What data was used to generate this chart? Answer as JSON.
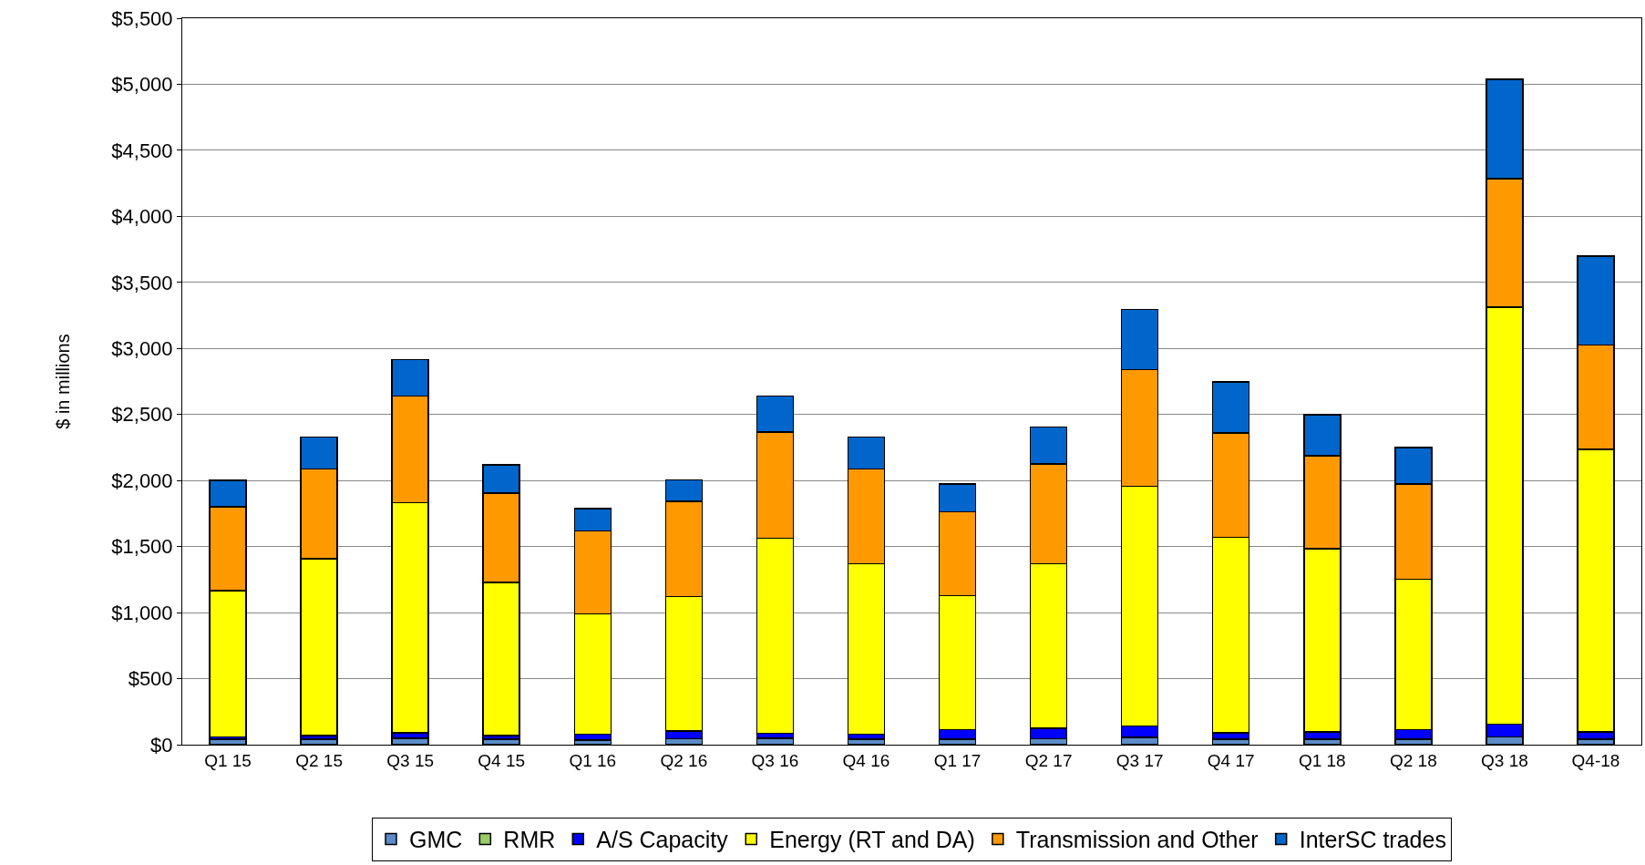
{
  "chart_data": {
    "type": "bar",
    "stacked": true,
    "ylabel": "$ in millions",
    "categories": [
      "Q1 15",
      "Q2 15",
      "Q3 15",
      "Q4 15",
      "Q1 16",
      "Q2 16",
      "Q3 16",
      "Q4 16",
      "Q1 17",
      "Q2 17",
      "Q3 17",
      "Q4 17",
      "Q1 18",
      "Q2 18",
      "Q3 18",
      "Q4-18"
    ],
    "series": [
      {
        "name": "GMC",
        "color": "#5b8cc8",
        "values": [
          40,
          40,
          50,
          40,
          35,
          45,
          50,
          40,
          40,
          45,
          55,
          40,
          40,
          40,
          60,
          40
        ]
      },
      {
        "name": "RMR",
        "color": "#99cc66",
        "values": [
          0,
          0,
          0,
          0,
          0,
          0,
          0,
          0,
          0,
          0,
          0,
          0,
          0,
          0,
          0,
          0
        ]
      },
      {
        "name": "A/S Capacity",
        "color": "#0000ff",
        "values": [
          20,
          30,
          40,
          30,
          45,
          60,
          35,
          40,
          75,
          80,
          85,
          50,
          55,
          75,
          95,
          55
        ]
      },
      {
        "name": "Energy (RT and DA)",
        "color": "#ffff00",
        "values": [
          1108,
          1338,
          1743,
          1160,
          910,
          1017,
          1478,
          1289,
          1014,
          1244,
          1817,
          1480,
          1390,
          1138,
          3156,
          2141
        ]
      },
      {
        "name": "Transmission and Other",
        "color": "#ff9900",
        "values": [
          634,
          681,
          805,
          673,
          627,
          719,
          804,
          720,
          635,
          758,
          882,
          790,
          704,
          720,
          975,
          789
        ]
      },
      {
        "name": "InterSC trades",
        "color": "#0066cc",
        "values": [
          198,
          240,
          279,
          217,
          170,
          163,
          271,
          240,
          209,
          279,
          457,
          386,
          310,
          278,
          750,
          673
        ]
      }
    ],
    "ylim": [
      0,
      5500
    ],
    "yticks": [
      {
        "value": 0,
        "label": "$0"
      },
      {
        "value": 500,
        "label": "$500"
      },
      {
        "value": 1000,
        "label": "$1,000"
      },
      {
        "value": 1500,
        "label": "$1,500"
      },
      {
        "value": 2000,
        "label": "$2,000"
      },
      {
        "value": 2500,
        "label": "$2,500"
      },
      {
        "value": 3000,
        "label": "$3,000"
      },
      {
        "value": 3500,
        "label": "$3,500"
      },
      {
        "value": 4000,
        "label": "$4,000"
      },
      {
        "value": 4500,
        "label": "$4,500"
      },
      {
        "value": 5000,
        "label": "$5,000"
      },
      {
        "value": 5500,
        "label": "$5,500"
      }
    ],
    "grid": "y",
    "legend": "bottom"
  }
}
